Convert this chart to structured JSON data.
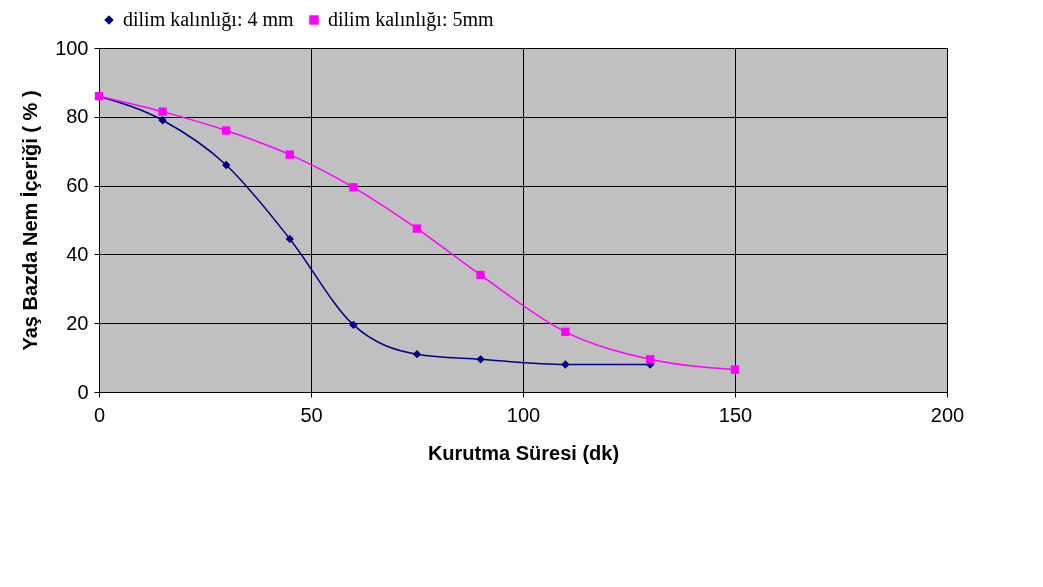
{
  "chart_data": {
    "type": "line",
    "xlabel": "Kurutma Süresi (dk)",
    "ylabel": "Yaş Bazda Nem İçeriği ( % )",
    "xlim": [
      0,
      200
    ],
    "xticks": [
      0,
      50,
      100,
      150,
      200
    ],
    "ylim": [
      0,
      100
    ],
    "yticks": [
      0,
      20,
      40,
      60,
      80,
      100
    ],
    "grid": true,
    "legend": "top",
    "series": [
      {
        "name": "dilim kalınlığı: 4 mm",
        "color": "#000080",
        "marker": "diamond",
        "x": [
          0,
          15,
          30,
          45,
          60,
          75,
          90,
          110,
          130
        ],
        "values": [
          86,
          79,
          66,
          44.5,
          19.5,
          11,
          9.5,
          8,
          8
        ]
      },
      {
        "name": "dilim kalınlığı: 5mm",
        "color": "#ff00ff",
        "marker": "square",
        "x": [
          0,
          15,
          30,
          45,
          60,
          75,
          90,
          110,
          130,
          150
        ],
        "values": [
          86,
          81.5,
          76,
          69,
          59.5,
          47.5,
          34,
          17.5,
          9.5,
          6.5
        ]
      }
    ]
  }
}
